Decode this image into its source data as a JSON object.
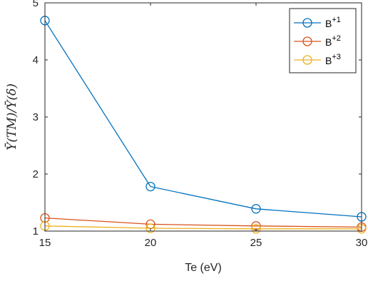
{
  "chart_data": {
    "type": "line",
    "title": "",
    "xlabel": "Te (eV)",
    "ylabel": "Ȳ(TM)/Ȳ(δ)",
    "x": [
      15,
      20,
      25,
      30
    ],
    "xlim": [
      15,
      30
    ],
    "ylim": [
      1,
      5
    ],
    "xticks": [
      "15",
      "20",
      "25",
      "30"
    ],
    "yticks": [
      "1",
      "2",
      "3",
      "4",
      "5"
    ],
    "grid": false,
    "legend_position": "top-right",
    "series": [
      {
        "name": "B",
        "sup": "+1",
        "color": "#0072BD",
        "marker": "circle",
        "values": [
          4.69,
          1.78,
          1.39,
          1.25
        ]
      },
      {
        "name": "B",
        "sup": "+2",
        "color": "#D95319",
        "marker": "circle",
        "values": [
          1.23,
          1.12,
          1.09,
          1.07
        ]
      },
      {
        "name": "B",
        "sup": "+3",
        "color": "#EDB120",
        "marker": "circle",
        "values": [
          1.09,
          1.05,
          1.04,
          1.04
        ]
      }
    ]
  }
}
